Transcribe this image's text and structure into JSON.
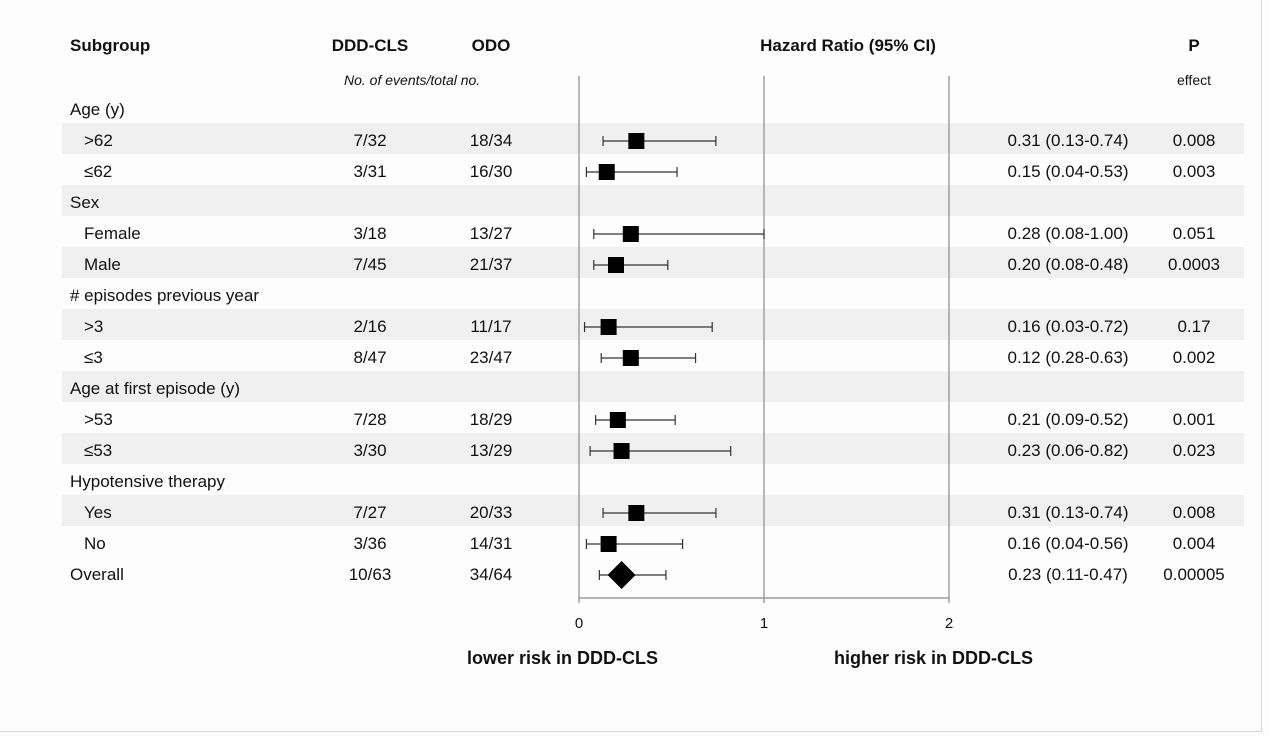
{
  "headers": {
    "subgroup": "Subgroup",
    "group_a": "DDD-CLS",
    "group_b": "ODO",
    "hr": "Hazard Ratio (95% CI)",
    "p": "P",
    "events_note": "No. of events/total no.",
    "p_sub": "effect"
  },
  "footer": {
    "left": "lower risk in DDD-CLS",
    "right": "higher risk in DDD-CLS"
  },
  "chart_data": {
    "type": "forest",
    "xlim": [
      0,
      2
    ],
    "x_ticks": [
      "0",
      "1",
      "2"
    ],
    "reference_line": 1,
    "rows": [
      {
        "kind": "group",
        "label": "Age (y)"
      },
      {
        "kind": "item",
        "label": ">62",
        "a": "7/32",
        "b": "18/34",
        "hr": 0.31,
        "lo": 0.13,
        "hi": 0.74,
        "hr_text": "0.31 (0.13-0.74)",
        "p": "0.008"
      },
      {
        "kind": "item",
        "label": "≤62",
        "a": "3/31",
        "b": "16/30",
        "hr": 0.15,
        "lo": 0.04,
        "hi": 0.53,
        "hr_text": "0.15 (0.04-0.53)",
        "p": "0.003"
      },
      {
        "kind": "group",
        "label": "Sex"
      },
      {
        "kind": "item",
        "label": "Female",
        "a": "3/18",
        "b": "13/27",
        "hr": 0.28,
        "lo": 0.08,
        "hi": 1.0,
        "hr_text": "0.28 (0.08-1.00)",
        "p": "0.051"
      },
      {
        "kind": "item",
        "label": "Male",
        "a": "7/45",
        "b": "21/37",
        "hr": 0.2,
        "lo": 0.08,
        "hi": 0.48,
        "hr_text": "0.20 (0.08-0.48)",
        "p": "0.0003"
      },
      {
        "kind": "group",
        "label": "# episodes previous year"
      },
      {
        "kind": "item",
        "label": ">3",
        "a": "2/16",
        "b": "11/17",
        "hr": 0.16,
        "lo": 0.03,
        "hi": 0.72,
        "hr_text": "0.16 (0.03-0.72)",
        "p": "0.17"
      },
      {
        "kind": "item",
        "label": "≤3",
        "a": "8/47",
        "b": "23/47",
        "hr": 0.28,
        "lo": 0.12,
        "hi": 0.63,
        "hr_text": "0.12 (0.28-0.63)",
        "p": "0.002"
      },
      {
        "kind": "group",
        "label": "Age at first episode (y)"
      },
      {
        "kind": "item",
        "label": ">53",
        "a": "7/28",
        "b": "18/29",
        "hr": 0.21,
        "lo": 0.09,
        "hi": 0.52,
        "hr_text": "0.21 (0.09-0.52)",
        "p": "0.001"
      },
      {
        "kind": "item",
        "label": "≤53",
        "a": "3/30",
        "b": "13/29",
        "hr": 0.23,
        "lo": 0.06,
        "hi": 0.82,
        "hr_text": "0.23 (0.06-0.82)",
        "p": "0.023"
      },
      {
        "kind": "group",
        "label": "Hypotensive therapy"
      },
      {
        "kind": "item",
        "label": "Yes",
        "a": "7/27",
        "b": "20/33",
        "hr": 0.31,
        "lo": 0.13,
        "hi": 0.74,
        "hr_text": "0.31 (0.13-0.74)",
        "p": "0.008"
      },
      {
        "kind": "item",
        "label": "No",
        "a": "3/36",
        "b": "14/31",
        "hr": 0.16,
        "lo": 0.04,
        "hi": 0.56,
        "hr_text": "0.16 (0.04-0.56)",
        "p": "0.004"
      },
      {
        "kind": "overall",
        "label": "Overall",
        "a": "10/63",
        "b": "34/64",
        "hr": 0.23,
        "lo": 0.11,
        "hi": 0.47,
        "hr_text": "0.23 (0.11-0.47)",
        "p": "0.00005"
      }
    ],
    "colors": {
      "marker": "#000000",
      "gridline": "#8a8a8a",
      "band": "#f0f0f0"
    }
  }
}
